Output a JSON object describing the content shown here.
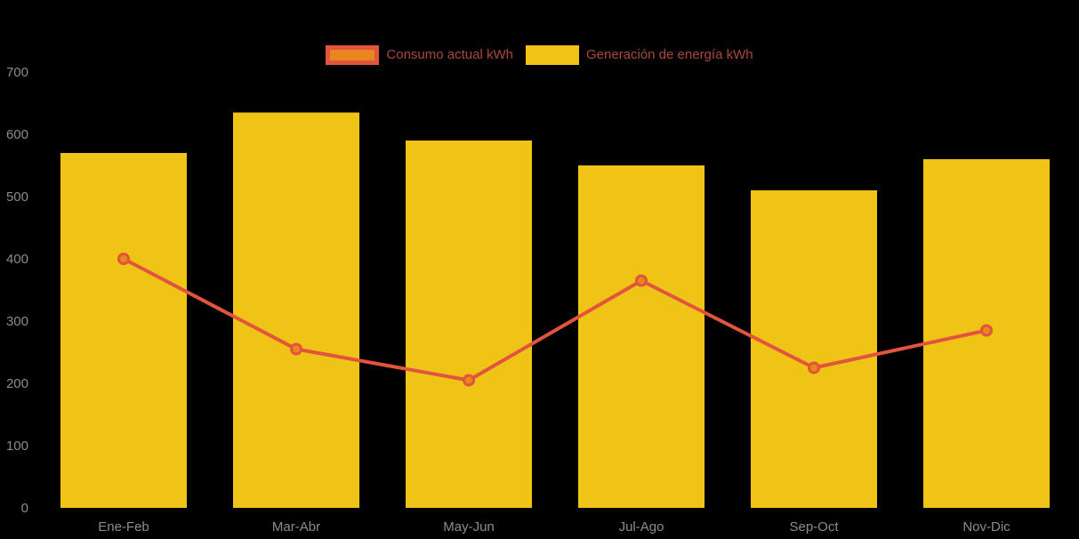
{
  "chart_data": {
    "type": "bar",
    "title": "",
    "categories": [
      "Ene-Feb",
      "Mar-Abr",
      "May-Jun",
      "Jul-Ago",
      "Sep-Oct",
      "Nov-Dic"
    ],
    "series": [
      {
        "name": "Consumo actual kWh",
        "type": "line",
        "values": [
          400,
          255,
          205,
          365,
          225,
          285
        ],
        "line_color": "#e2543e",
        "point_fill": "#e8861f",
        "point_stroke": "#e2543e"
      },
      {
        "name": "Generación de energía kWh",
        "type": "bar",
        "values": [
          570,
          635,
          590,
          550,
          510,
          560
        ],
        "bar_color": "#f0c417"
      }
    ],
    "xlabel": "",
    "ylabel": "",
    "ylim": [
      0,
      700
    ],
    "yticks": [
      "0",
      "100",
      "200",
      "300",
      "400",
      "500",
      "600",
      "700"
    ],
    "grid": false,
    "legend_position": "top",
    "background": "#000000",
    "axis_text_color": "#8c8c8c"
  },
  "legend": {
    "items": [
      {
        "label": "Consumo actual kWh",
        "swatch_fill": "#e8861f",
        "swatch_border": "#e2543e",
        "text_color": "#a8493c"
      },
      {
        "label": "Generación de energía kWh",
        "swatch_fill": "#f0c417",
        "swatch_border": "#f0c417",
        "text_color": "#a8493c"
      }
    ]
  }
}
